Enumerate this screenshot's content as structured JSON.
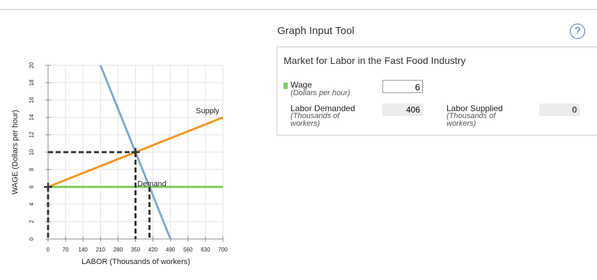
{
  "chart_data": {
    "type": "line",
    "x_label": "LABOR (Thousands of workers)",
    "y_label": "WAGE (Dollars per hour)",
    "xlim": [
      0,
      700
    ],
    "ylim": [
      0,
      20
    ],
    "xticks": [
      0,
      70,
      140,
      210,
      280,
      350,
      420,
      490,
      560,
      630,
      700
    ],
    "yticks": [
      0,
      2,
      4,
      6,
      8,
      10,
      12,
      14,
      16,
      18,
      20
    ],
    "grid": true,
    "series": [
      {
        "name": "Supply",
        "color": "#f7941d",
        "x": [
          0,
          700
        ],
        "values": [
          6,
          14
        ]
      },
      {
        "name": "Demand",
        "color": "#7ea6d3",
        "x": [
          210,
          490
        ],
        "values": [
          20,
          0
        ]
      },
      {
        "color": "#7dc95e",
        "x": [
          0,
          700
        ],
        "values": [
          6,
          6
        ]
      }
    ],
    "guides": {
      "color": "#333333",
      "points": [
        {
          "x": 350,
          "y": 10,
          "cross": true,
          "horizontal": true
        },
        {
          "x": 0,
          "y": 6,
          "cross": true,
          "horizontal": false
        },
        {
          "x": 406,
          "y": 6,
          "cross": false,
          "horizontal": false
        }
      ]
    }
  },
  "tool": {
    "title": "Graph Input Tool",
    "help": "?",
    "panel_title": "Market for Labor in the Fast Food Industry",
    "wage_label": "Wage",
    "wage_unit": "(Dollars per hour)",
    "wage_value": 6,
    "demanded_label": "Labor Demanded",
    "demanded_unit": "(Thousands of workers)",
    "demanded_value": 406,
    "supplied_label": "Labor Supplied",
    "supplied_unit": "(Thousands of workers)",
    "supplied_value": 0
  }
}
